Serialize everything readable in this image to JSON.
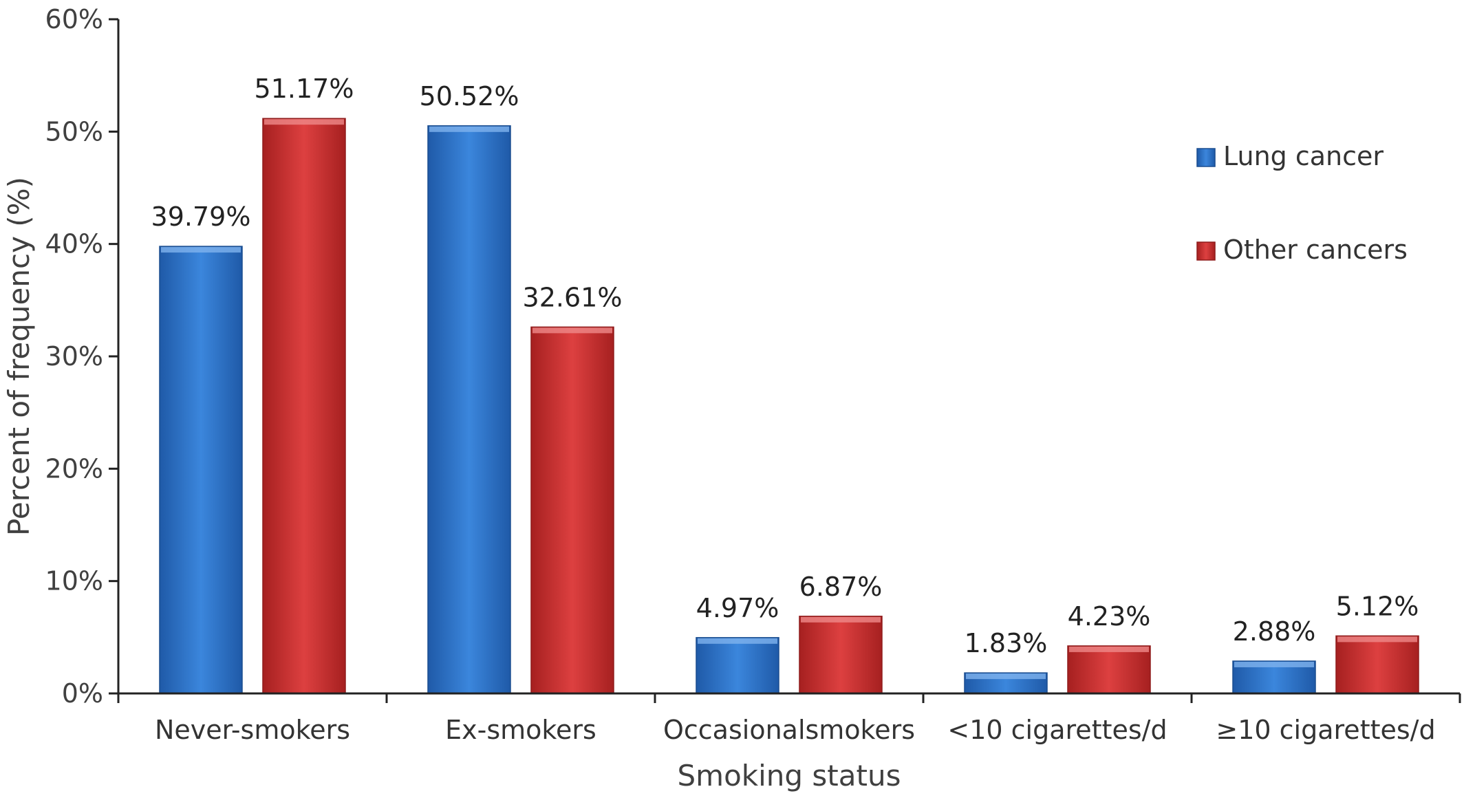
{
  "chart_data": {
    "type": "bar",
    "categories": [
      "Never-smokers",
      "Ex-smokers",
      "Occasionalsmokers",
      "<10 cigarettes/d",
      "≥10 cigarettes/d"
    ],
    "series": [
      {
        "name": "Lung cancer",
        "values": [
          39.79,
          50.52,
          4.97,
          1.83,
          2.88
        ],
        "labels": [
          "39.79%",
          "50.52%",
          "4.97%",
          "1.83%",
          "2.88%"
        ],
        "color": "#2e74c9"
      },
      {
        "name": "Other cancers",
        "values": [
          51.17,
          32.61,
          6.87,
          4.23,
          5.12
        ],
        "labels": [
          "51.17%",
          "32.61%",
          "6.87%",
          "4.23%",
          "5.12%"
        ],
        "color": "#cf3232"
      }
    ],
    "xlabel": "Smoking status",
    "ylabel": "Percent of frequency (%)",
    "ylim": [
      0,
      60
    ],
    "yticks": [
      "0%",
      "10%",
      "20%",
      "30%",
      "40%",
      "50%",
      "60%"
    ],
    "grid": false,
    "legend_position": "right"
  }
}
